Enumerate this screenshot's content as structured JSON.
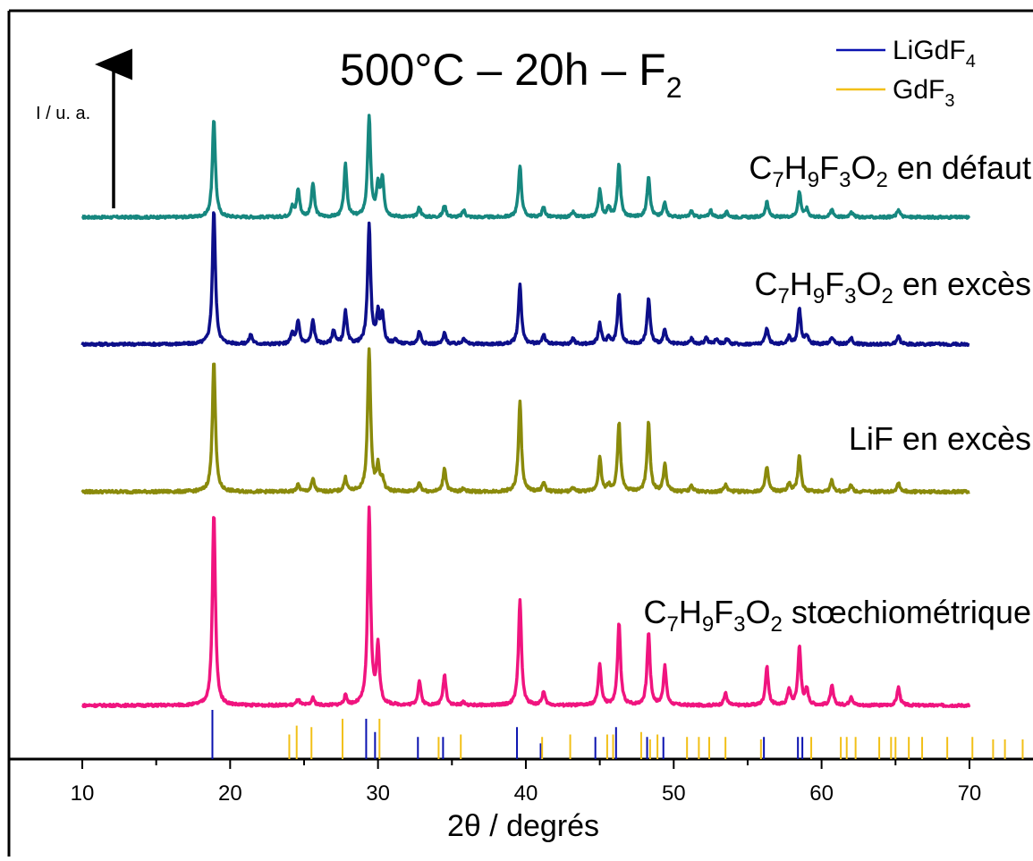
{
  "chart_data": {
    "type": "line",
    "title": "500°C – 20h – F",
    "title_subscript": "2",
    "xlabel": "2θ / degrés",
    "ylabel": "I / u. a.",
    "xlim": [
      10,
      72
    ],
    "x_ticks": [
      "10",
      "20",
      "30",
      "40",
      "50",
      "60",
      "70"
    ],
    "legend_placement": "top-right",
    "colors": {
      "defaut": "#16877f",
      "exces_acid": "#0d0f8a",
      "lif": "#8a8a0b",
      "stoich": "#f0147f",
      "ligdf4": "#0a12b0",
      "gdf3": "#f2c018"
    },
    "legend": [
      {
        "base": "LiGdF",
        "sub": "4",
        "color": "#0a12b0"
      },
      {
        "base": "GdF",
        "sub": "3",
        "color": "#f2c018"
      }
    ],
    "series": [
      {
        "name": "C7H9F3O2 en défaut",
        "label_parts": [
          [
            "C",
            ""
          ],
          [
            "7",
            "sub"
          ],
          [
            "H",
            ""
          ],
          [
            "9",
            "sub"
          ],
          [
            "F",
            ""
          ],
          [
            "3",
            "sub"
          ],
          [
            "O",
            ""
          ],
          [
            "2",
            "sub"
          ],
          [
            " en défaut",
            ""
          ]
        ],
        "color": "#16877f",
        "baseline": 0.0,
        "x_range": [
          10,
          70
        ],
        "peaks": [
          [
            18.9,
            1.0
          ],
          [
            24.2,
            0.1
          ],
          [
            24.6,
            0.28
          ],
          [
            25.6,
            0.34
          ],
          [
            27.8,
            0.53
          ],
          [
            29.4,
            1.02
          ],
          [
            30.0,
            0.3
          ],
          [
            30.3,
            0.38
          ],
          [
            32.8,
            0.1
          ],
          [
            34.5,
            0.12
          ],
          [
            35.8,
            0.07
          ],
          [
            39.6,
            0.53
          ],
          [
            41.2,
            0.1
          ],
          [
            43.2,
            0.05
          ],
          [
            45.0,
            0.27
          ],
          [
            45.6,
            0.1
          ],
          [
            46.3,
            0.54
          ],
          [
            48.3,
            0.42
          ],
          [
            49.4,
            0.15
          ],
          [
            51.2,
            0.06
          ],
          [
            52.5,
            0.07
          ],
          [
            53.6,
            0.05
          ],
          [
            56.3,
            0.16
          ],
          [
            58.5,
            0.26
          ],
          [
            59.0,
            0.08
          ],
          [
            60.7,
            0.08
          ],
          [
            62.0,
            0.06
          ],
          [
            65.2,
            0.08
          ]
        ]
      },
      {
        "name": "C7H9F3O2 en excès",
        "label_parts": [
          [
            "C",
            ""
          ],
          [
            "7",
            "sub"
          ],
          [
            "H",
            ""
          ],
          [
            "9",
            "sub"
          ],
          [
            "F",
            ""
          ],
          [
            "3",
            "sub"
          ],
          [
            "O",
            ""
          ],
          [
            "2",
            "sub"
          ],
          [
            " en excès",
            ""
          ]
        ],
        "color": "#0d0f8a",
        "baseline": 0.0,
        "x_range": [
          10,
          70
        ],
        "peaks": [
          [
            18.9,
            1.25
          ],
          [
            21.4,
            0.09
          ],
          [
            24.2,
            0.1
          ],
          [
            24.6,
            0.21
          ],
          [
            25.6,
            0.22
          ],
          [
            27.0,
            0.13
          ],
          [
            27.8,
            0.3
          ],
          [
            29.4,
            1.12
          ],
          [
            30.0,
            0.27
          ],
          [
            30.3,
            0.25
          ],
          [
            31.2,
            0.04
          ],
          [
            32.8,
            0.12
          ],
          [
            34.5,
            0.1
          ],
          [
            35.8,
            0.06
          ],
          [
            39.6,
            0.56
          ],
          [
            41.2,
            0.09
          ],
          [
            43.2,
            0.05
          ],
          [
            45.0,
            0.19
          ],
          [
            45.6,
            0.06
          ],
          [
            46.3,
            0.47
          ],
          [
            48.3,
            0.43
          ],
          [
            49.4,
            0.13
          ],
          [
            51.2,
            0.05
          ],
          [
            52.2,
            0.06
          ],
          [
            52.9,
            0.05
          ],
          [
            53.6,
            0.05
          ],
          [
            56.3,
            0.15
          ],
          [
            57.8,
            0.07
          ],
          [
            58.5,
            0.33
          ],
          [
            59.0,
            0.08
          ],
          [
            60.7,
            0.07
          ],
          [
            62.0,
            0.06
          ],
          [
            65.2,
            0.07
          ]
        ]
      },
      {
        "name": "LiF en excès",
        "label_parts": [
          [
            "LiF en excès",
            ""
          ]
        ],
        "color": "#8a8a0b",
        "baseline": 0.0,
        "x_range": [
          10,
          70
        ],
        "peaks": [
          [
            18.9,
            1.18
          ],
          [
            24.6,
            0.06
          ],
          [
            25.6,
            0.11
          ],
          [
            27.8,
            0.12
          ],
          [
            29.4,
            1.28
          ],
          [
            30.0,
            0.22
          ],
          [
            30.3,
            0.1
          ],
          [
            32.8,
            0.08
          ],
          [
            34.5,
            0.21
          ],
          [
            35.8,
            0.03
          ],
          [
            39.6,
            0.8
          ],
          [
            41.2,
            0.08
          ],
          [
            43.2,
            0.03
          ],
          [
            45.0,
            0.3
          ],
          [
            45.6,
            0.05
          ],
          [
            46.3,
            0.61
          ],
          [
            48.3,
            0.62
          ],
          [
            49.4,
            0.24
          ],
          [
            51.2,
            0.05
          ],
          [
            53.5,
            0.06
          ],
          [
            56.3,
            0.22
          ],
          [
            57.8,
            0.07
          ],
          [
            58.5,
            0.33
          ],
          [
            60.7,
            0.1
          ],
          [
            62.0,
            0.06
          ],
          [
            65.2,
            0.08
          ]
        ]
      },
      {
        "name": "C7H9F3O2 stœchiométrique",
        "label_parts": [
          [
            "C",
            ""
          ],
          [
            "7",
            "sub"
          ],
          [
            "H",
            ""
          ],
          [
            "9",
            "sub"
          ],
          [
            "F",
            ""
          ],
          [
            "3",
            "sub"
          ],
          [
            "O",
            ""
          ],
          [
            "2",
            "sub"
          ],
          [
            " stœchiométrique",
            ""
          ]
        ],
        "color": "#f0147f",
        "baseline": 0.0,
        "x_range": [
          10,
          70
        ],
        "peaks": [
          [
            18.9,
            1.91
          ],
          [
            24.6,
            0.06
          ],
          [
            25.6,
            0.07
          ],
          [
            27.8,
            0.09
          ],
          [
            29.4,
            1.93
          ],
          [
            30.0,
            0.57
          ],
          [
            32.8,
            0.24
          ],
          [
            34.5,
            0.3
          ],
          [
            35.8,
            0.03
          ],
          [
            39.6,
            1.05
          ],
          [
            41.2,
            0.13
          ],
          [
            45.0,
            0.4
          ],
          [
            46.3,
            0.81
          ],
          [
            48.3,
            0.72
          ],
          [
            49.4,
            0.38
          ],
          [
            53.5,
            0.12
          ],
          [
            56.3,
            0.38
          ],
          [
            57.8,
            0.16
          ],
          [
            58.5,
            0.58
          ],
          [
            59.0,
            0.15
          ],
          [
            60.7,
            0.19
          ],
          [
            62.0,
            0.09
          ],
          [
            65.2,
            0.18
          ]
        ]
      }
    ],
    "reference_patterns": [
      {
        "name": "LiGdF4",
        "color": "#0a12b0",
        "lines": [
          [
            18.8,
            1.0
          ],
          [
            29.2,
            0.82
          ],
          [
            29.8,
            0.55
          ],
          [
            32.7,
            0.45
          ],
          [
            34.4,
            0.45
          ],
          [
            39.4,
            0.65
          ],
          [
            41.0,
            0.32
          ],
          [
            44.7,
            0.45
          ],
          [
            46.1,
            0.65
          ],
          [
            48.2,
            0.45
          ],
          [
            49.3,
            0.45
          ],
          [
            56.1,
            0.45
          ],
          [
            58.4,
            0.45
          ],
          [
            58.7,
            0.45
          ]
        ]
      },
      {
        "name": "GdF3",
        "color": "#f2c018",
        "lines": [
          [
            24.0,
            0.5
          ],
          [
            24.5,
            0.68
          ],
          [
            25.5,
            0.65
          ],
          [
            27.6,
            0.82
          ],
          [
            30.1,
            0.82
          ],
          [
            34.1,
            0.45
          ],
          [
            35.6,
            0.5
          ],
          [
            41.1,
            0.45
          ],
          [
            43.0,
            0.5
          ],
          [
            45.5,
            0.5
          ],
          [
            45.9,
            0.5
          ],
          [
            47.8,
            0.55
          ],
          [
            48.4,
            0.4
          ],
          [
            48.9,
            0.5
          ],
          [
            50.9,
            0.45
          ],
          [
            51.7,
            0.45
          ],
          [
            52.4,
            0.45
          ],
          [
            53.5,
            0.45
          ],
          [
            55.9,
            0.4
          ],
          [
            59.3,
            0.45
          ],
          [
            61.3,
            0.45
          ],
          [
            61.7,
            0.45
          ],
          [
            62.3,
            0.45
          ],
          [
            63.9,
            0.45
          ],
          [
            64.7,
            0.45
          ],
          [
            65.0,
            0.45
          ],
          [
            65.9,
            0.45
          ],
          [
            66.8,
            0.45
          ],
          [
            68.5,
            0.45
          ],
          [
            70.2,
            0.45
          ],
          [
            71.6,
            0.4
          ],
          [
            72.4,
            0.4
          ],
          [
            73.6,
            0.4
          ]
        ]
      }
    ]
  }
}
